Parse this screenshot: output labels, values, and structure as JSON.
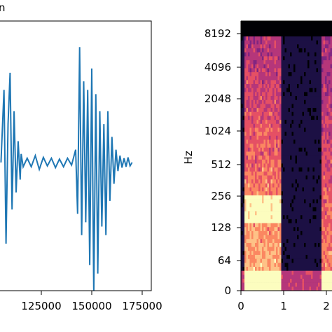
{
  "chart_data": [
    {
      "type": "line",
      "title_fragment": "n",
      "xlabel": "",
      "ylabel": "",
      "xlim": [
        105000,
        175000
      ],
      "x_ticks": [
        {
          "value": 125000,
          "label": "125000"
        },
        {
          "value": 150000,
          "label": "150000"
        },
        {
          "value": 175000,
          "label": "175000"
        }
      ],
      "series": [
        {
          "color": "#1f77b4",
          "x": [
            105000,
            106500,
            107500,
            108500,
            109500,
            110500,
            111500,
            112500,
            113500,
            114500,
            115000,
            116000,
            118000,
            120000,
            122000,
            124000,
            126000,
            128000,
            130000,
            132000,
            134000,
            136000,
            138000,
            140000,
            142000,
            143000,
            144000,
            145000,
            146000,
            147000,
            148000,
            149000,
            150000,
            151000,
            152000,
            153000,
            154000,
            155000,
            156000,
            157000,
            158000,
            159000,
            160000,
            161000,
            162000,
            163000,
            164000,
            165000,
            166000,
            167000,
            168000,
            169000,
            170000
          ],
          "y": [
            0.0,
            0.85,
            -0.95,
            0.45,
            1.05,
            -0.55,
            0.6,
            -0.35,
            0.25,
            -0.2,
            0.1,
            -0.05,
            0.05,
            -0.05,
            0.08,
            -0.08,
            0.06,
            -0.04,
            0.05,
            -0.06,
            0.04,
            -0.05,
            0.05,
            -0.03,
            0.15,
            -0.6,
            1.35,
            -0.85,
            0.95,
            -0.7,
            0.85,
            -1.2,
            1.1,
            -1.55,
            0.8,
            -1.3,
            0.6,
            -0.75,
            0.45,
            -0.85,
            0.6,
            -0.45,
            0.3,
            -0.25,
            0.15,
            -0.1,
            0.08,
            -0.06,
            0.05,
            -0.05,
            0.06,
            -0.04,
            0.0
          ]
        }
      ]
    },
    {
      "type": "heatmap",
      "xlabel": "",
      "ylabel": "Hz",
      "x_ticks": [
        {
          "value": 0,
          "label": "0"
        },
        {
          "value": 1,
          "label": "1"
        },
        {
          "value": 2,
          "label": "2"
        }
      ],
      "y_scale": "log2",
      "y_ticks": [
        {
          "value": 0,
          "label": "0"
        },
        {
          "value": 64,
          "label": "64"
        },
        {
          "value": 128,
          "label": "128"
        },
        {
          "value": 256,
          "label": "256"
        },
        {
          "value": 512,
          "label": "512"
        },
        {
          "value": 1024,
          "label": "1024"
        },
        {
          "value": 2048,
          "label": "2048"
        },
        {
          "value": 4096,
          "label": "4096"
        },
        {
          "value": 8192,
          "label": "8192"
        }
      ],
      "colormap": "magma"
    }
  ]
}
